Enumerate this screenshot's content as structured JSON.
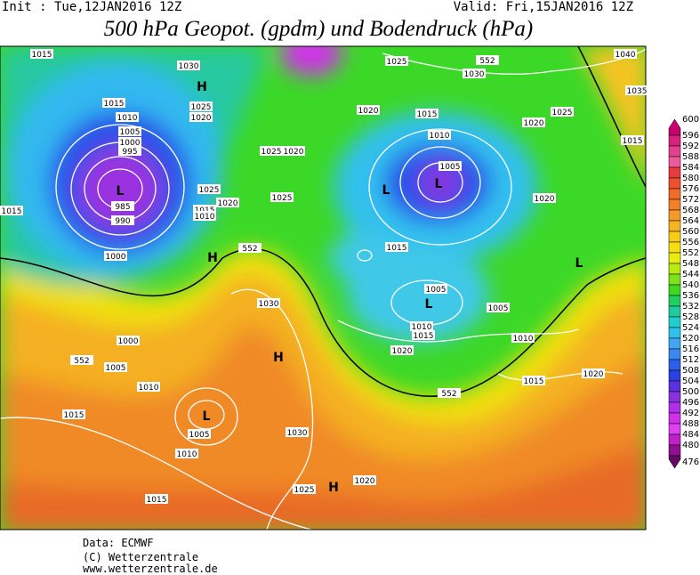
{
  "header": {
    "init": "Init : Tue,12JAN2016 12Z",
    "valid": "Valid: Fri,15JAN2016 12Z",
    "title": "500 hPa Geopot. (gpdm) und Bodendruck (hPa)"
  },
  "contour_labels": [
    "1015",
    "1030",
    "1025",
    "1030",
    "1040",
    "1035",
    "1015",
    "1010",
    "1005",
    "1000",
    "995",
    "985",
    "990",
    "1000",
    "1025",
    "1020",
    "1020",
    "1015",
    "1020",
    "1025",
    "1015",
    "1010",
    "1005",
    "1025",
    "1020",
    "1025",
    "1020",
    "1025",
    "1015",
    "1010",
    "1015",
    "1020",
    "1015",
    "1005",
    "1005",
    "1030",
    "1010",
    "1015",
    "1010",
    "1020",
    "1000",
    "1005",
    "1010",
    "1015",
    "1005",
    "1010",
    "1030",
    "1025",
    "1020",
    "1015",
    "1020",
    "1015",
    "552",
    "552",
    "552",
    "552"
  ],
  "pressure_centers": [
    "L",
    "L",
    "L",
    "L",
    "L",
    "L",
    "H",
    "H",
    "H",
    "H"
  ],
  "colorbar": {
    "levels": [
      600,
      596,
      592,
      588,
      584,
      580,
      576,
      572,
      568,
      564,
      560,
      556,
      552,
      548,
      544,
      540,
      536,
      532,
      528,
      524,
      520,
      516,
      512,
      508,
      504,
      500,
      496,
      492,
      488,
      484,
      480,
      476
    ],
    "colors": [
      "#c8006e",
      "#d8207e",
      "#e4408e",
      "#ec5a9a",
      "#e83a40",
      "#ee5030",
      "#f06a28",
      "#f28028",
      "#f49a28",
      "#f6b420",
      "#f8cc18",
      "#f4e010",
      "#e8ec10",
      "#b8ec10",
      "#7ce41a",
      "#40d820",
      "#20d060",
      "#20cc9c",
      "#20d0d0",
      "#30c0ee",
      "#40a8f0",
      "#3a88f0",
      "#2c60e8",
      "#2a40e0",
      "#5a30e0",
      "#8a30e0",
      "#b030e8",
      "#d030e8",
      "#e040f0",
      "#c020c8",
      "#901090",
      "#600c60"
    ]
  },
  "footer": [
    "Data: ECMWF",
    "(C) Wetterzentrale",
    "www.wetterzentrale.de"
  ]
}
